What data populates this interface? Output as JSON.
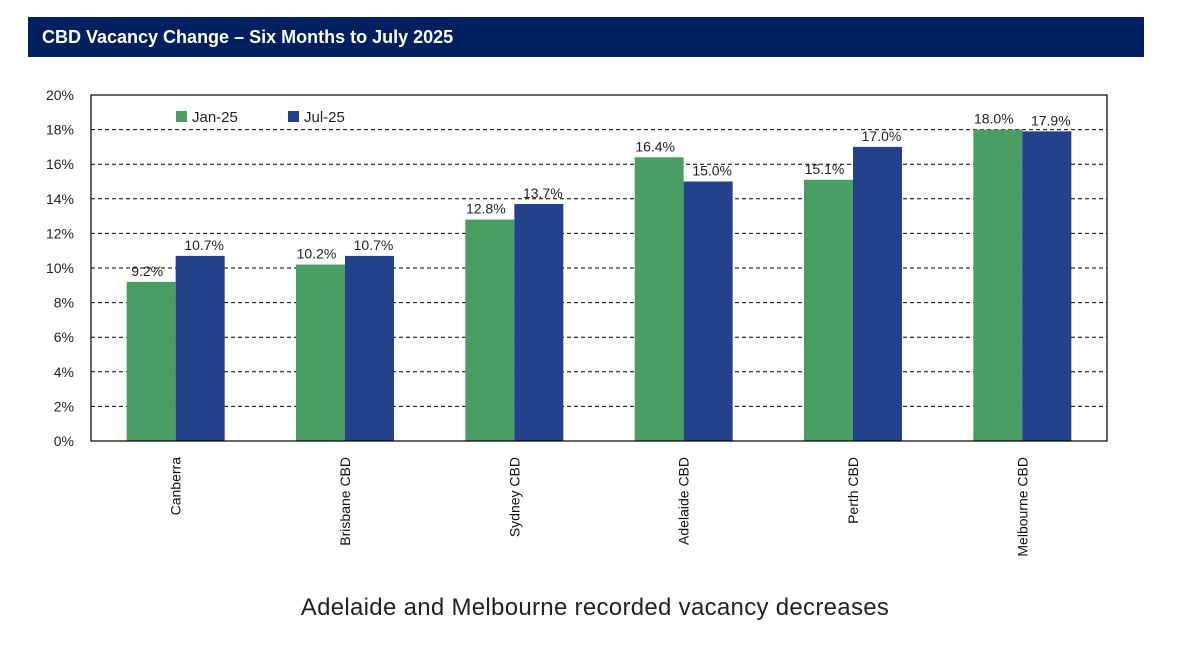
{
  "title": "CBD Vacancy Change – Six Months to July 2025",
  "caption": "Adelaide and Melbourne recorded vacancy decreases",
  "colors": {
    "title_bar": "#002060",
    "jan": "#4a9e63",
    "jul": "#24418c"
  },
  "chart_data": {
    "type": "bar",
    "categories": [
      "Canberra",
      "Brisbane CBD",
      "Sydney CBD",
      "Adelaide CBD",
      "Perth CBD",
      "Melbourne CBD"
    ],
    "series": [
      {
        "name": "Jan-25",
        "values": [
          9.2,
          10.2,
          12.8,
          16.4,
          15.1,
          18.0
        ],
        "labels": [
          "9.2%",
          "10.2%",
          "12.8%",
          "16.4%",
          "15.1%",
          "18.0%"
        ],
        "color": "#4a9e63"
      },
      {
        "name": "Jul-25",
        "values": [
          10.7,
          10.7,
          13.7,
          15.0,
          17.0,
          17.9
        ],
        "labels": [
          "10.7%",
          "10.7%",
          "13.7%",
          "15.0%",
          "17.0%",
          "17.9%"
        ],
        "color": "#24418c"
      }
    ],
    "y_ticks": [
      "0%",
      "2%",
      "4%",
      "6%",
      "8%",
      "10%",
      "12%",
      "14%",
      "16%",
      "18%",
      "20%"
    ],
    "ylim": [
      0,
      20
    ],
    "grid": "dashed horizontal",
    "legend": "top-left",
    "xlabel": "",
    "ylabel": ""
  }
}
